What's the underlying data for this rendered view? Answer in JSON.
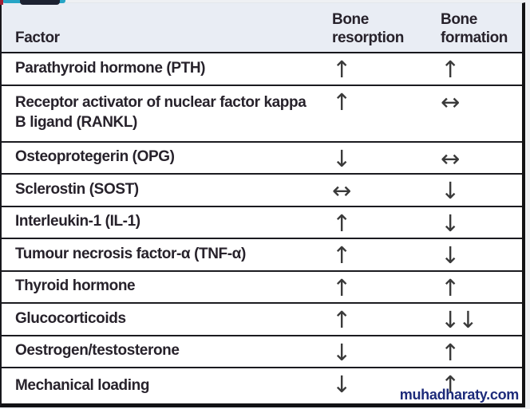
{
  "page": {
    "watermark_text": "muhadharaty.com"
  },
  "table": {
    "headers": {
      "factor": "Factor",
      "resorption": "Bone resorption",
      "formation": "Bone formation"
    },
    "rows": [
      {
        "factor": "Parathyroid hormone (PTH)",
        "resorption": "↑",
        "formation": "↑"
      },
      {
        "factor": "Receptor activator of nuclear factor kappa B ligand (RANKL)",
        "resorption": "↑",
        "formation": "↔"
      },
      {
        "factor": "Osteoprotegerin (OPG)",
        "resorption": "↓",
        "formation": "↔"
      },
      {
        "factor": "Sclerostin (SOST)",
        "resorption": "↔",
        "formation": "↓"
      },
      {
        "factor": "Interleukin-1 (IL-1)",
        "resorption": "↑",
        "formation": "↓"
      },
      {
        "factor": "Tumour necrosis factor-α (TNF-α)",
        "resorption": "↑",
        "formation": "↓"
      },
      {
        "factor": "Thyroid hormone",
        "resorption": "↑",
        "formation": "↑"
      },
      {
        "factor": "Glucocorticoids",
        "resorption": "↑",
        "formation": "↓↓"
      },
      {
        "factor": "Oestrogen/testosterone",
        "resorption": "↓",
        "formation": "↑"
      },
      {
        "factor": "Mechanical loading",
        "resorption": "↓",
        "formation": "↑"
      }
    ]
  },
  "colors": {
    "header_bg": "#e9edf4",
    "row_bg": "#ffffff",
    "text": "#27222b",
    "arrow": "#3a3a3a",
    "border": "#17171c",
    "watermark": "#1d2b7a",
    "deco_red": "#a21f34",
    "deco_teal": "#27a5c6",
    "deco_navy": "#1d2231"
  },
  "chart_data": {
    "type": "table",
    "title": "",
    "columns": [
      "Factor",
      "Bone resorption",
      "Bone formation"
    ],
    "rows": [
      [
        "Parathyroid hormone (PTH)",
        "↑",
        "↑"
      ],
      [
        "Receptor activator of nuclear factor kappa B ligand (RANKL)",
        "↑",
        "↔"
      ],
      [
        "Osteoprotegerin (OPG)",
        "↓",
        "↔"
      ],
      [
        "Sclerostin (SOST)",
        "↔",
        "↓"
      ],
      [
        "Interleukin-1 (IL-1)",
        "↑",
        "↓"
      ],
      [
        "Tumour necrosis factor-α (TNF-α)",
        "↑",
        "↓"
      ],
      [
        "Thyroid hormone",
        "↑",
        "↑"
      ],
      [
        "Glucocorticoids",
        "↑",
        "↓↓"
      ],
      [
        "Oestrogen/testosterone",
        "↓",
        "↑"
      ],
      [
        "Mechanical loading",
        "↓",
        "↑"
      ]
    ]
  }
}
